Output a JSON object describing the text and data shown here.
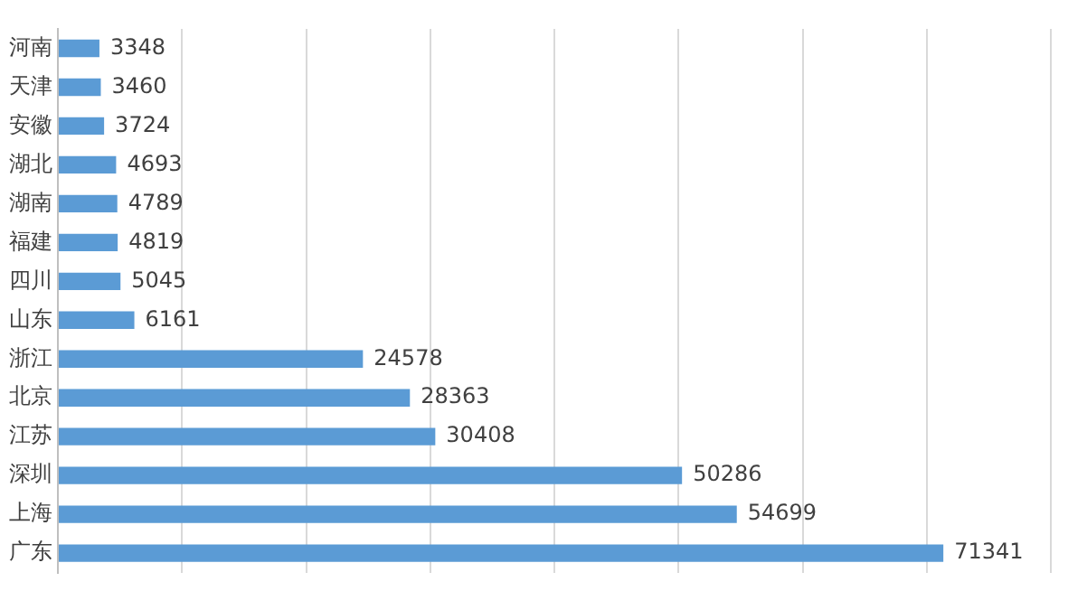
{
  "chart_data": {
    "type": "bar",
    "orientation": "horizontal",
    "categories": [
      "河南",
      "天津",
      "安徽",
      "湖北",
      "湖南",
      "福建",
      "四川",
      "山东",
      "浙江",
      "北京",
      "江苏",
      "深圳",
      "上海",
      "广东"
    ],
    "values": [
      3348,
      3460,
      3724,
      4693,
      4789,
      4819,
      5045,
      6161,
      24578,
      28363,
      30408,
      50286,
      54699,
      71341
    ],
    "color": "#5b9bd5",
    "xlim": [
      0,
      80000
    ],
    "xticks": [
      {
        "value": 0,
        "label": null
      },
      {
        "value": 10000,
        "label": null
      },
      {
        "value": 20000,
        "label": null
      },
      {
        "value": 30000,
        "label": null
      },
      {
        "value": 40000,
        "label": null
      },
      {
        "value": 50000,
        "label": null
      },
      {
        "value": 60000,
        "label": null
      },
      {
        "value": 70000,
        "label": null
      },
      {
        "value": 80000,
        "label": null
      }
    ],
    "grid": "x",
    "tick_labels": "y",
    "data_labels": true,
    "legend": false
  }
}
